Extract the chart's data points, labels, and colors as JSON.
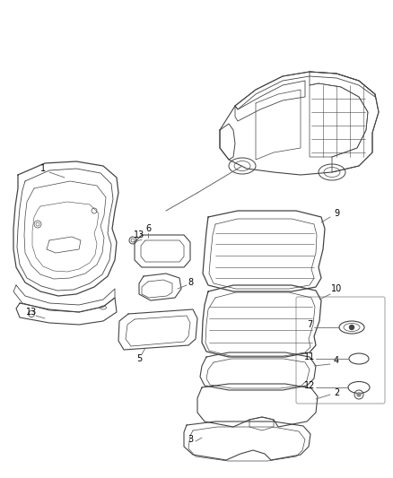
{
  "background_color": "#ffffff",
  "line_color": "#444444",
  "label_color": "#000000",
  "callout_color": "#666666",
  "figure_width": 4.38,
  "figure_height": 5.33,
  "dpi": 100
}
